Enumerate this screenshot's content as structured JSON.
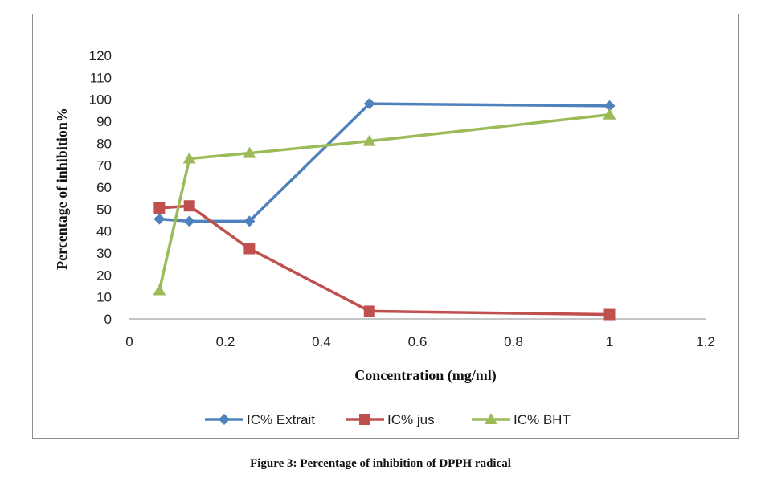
{
  "caption": "Figure 3: Percentage of inhibition of DPPH radical",
  "chart_data": {
    "type": "line",
    "title": "",
    "xlabel": "Concentration (mg/ml)",
    "ylabel": "Percentage of inhibition%",
    "xlim": [
      0,
      1.2
    ],
    "ylim": [
      0,
      120
    ],
    "x_ticks": [
      "0",
      "0.2",
      "0.4",
      "0.6",
      "0.8",
      "1",
      "1.2"
    ],
    "y_ticks": [
      "0",
      "10",
      "20",
      "30",
      "40",
      "50",
      "60",
      "70",
      "80",
      "90",
      "100",
      "110",
      "120"
    ],
    "grid": false,
    "legend_position": "bottom",
    "series": [
      {
        "name": "IC% Extrait",
        "color": "#4f81bd",
        "marker": "diamond",
        "x": [
          0.0625,
          0.125,
          0.25,
          0.5,
          1
        ],
        "y": [
          45.5,
          44.5,
          44.5,
          98,
          97
        ]
      },
      {
        "name": "IC% jus",
        "color": "#c0504d",
        "marker": "square",
        "x": [
          0.0625,
          0.125,
          0.25,
          0.5,
          1
        ],
        "y": [
          50.5,
          51.5,
          32,
          3.5,
          2
        ]
      },
      {
        "name": "IC% BHT",
        "color": "#9bbb59",
        "marker": "triangle",
        "x": [
          0.0625,
          0.125,
          0.25,
          0.5,
          1
        ],
        "y": [
          13,
          73,
          75.5,
          81,
          93
        ]
      }
    ]
  }
}
